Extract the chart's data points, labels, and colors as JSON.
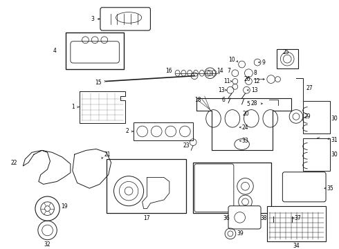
{
  "bg_color": "#ffffff",
  "line_color": "#1a1a1a",
  "label_color": "#000000",
  "fs": 5.5,
  "fig_width": 4.9,
  "fig_height": 3.6,
  "dpi": 100
}
